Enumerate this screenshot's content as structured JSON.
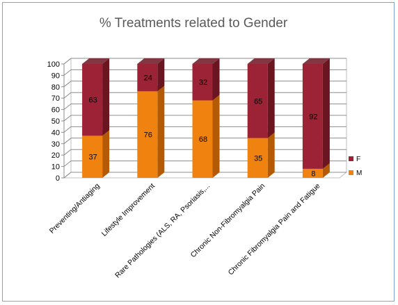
{
  "chart_data": {
    "type": "bar",
    "stacked": true,
    "three_d": true,
    "title": "% Treatments related to Gender",
    "xlabel": "",
    "ylabel": "",
    "ylim": [
      0,
      100
    ],
    "yticks": [
      0,
      10,
      20,
      30,
      40,
      50,
      60,
      70,
      80,
      90,
      100
    ],
    "grid": true,
    "legend_position": "right",
    "categories": [
      "Preventing/Antiaging",
      "Lifestyle Improvement",
      "Rare Pathologies (ALS, RA, Psoriasis,...",
      "Chronic Non-Fibromyalgia Pain",
      "Chronic Fibromyalgia Pain and Fatigue"
    ],
    "series": [
      {
        "name": "M",
        "values": [
          37,
          76,
          68,
          35,
          8
        ],
        "color": "#f0830f",
        "color_dark": "#b45a05"
      },
      {
        "name": "F",
        "values": [
          63,
          24,
          32,
          65,
          92
        ],
        "color": "#9b2335",
        "color_dark": "#6b1521"
      }
    ],
    "legend": [
      {
        "name": "F",
        "color": "#9b2335"
      },
      {
        "name": "M",
        "color": "#f0830f"
      }
    ]
  }
}
